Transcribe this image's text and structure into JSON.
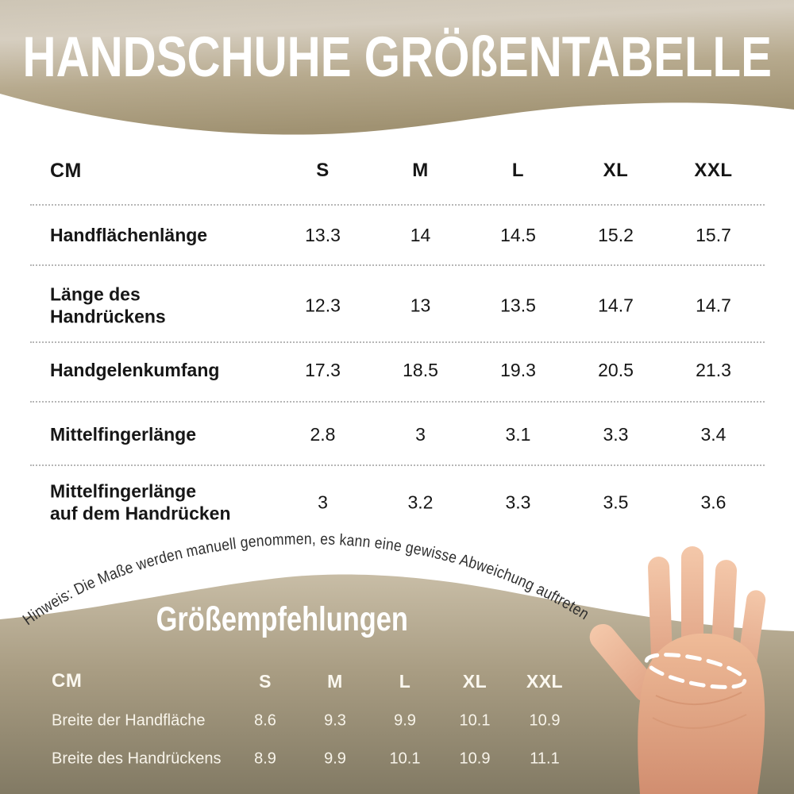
{
  "colors": {
    "banner_light": "#d6cec0",
    "banner_tan": "#a29374",
    "section_tan_light": "#c8bda6",
    "section_tan_dark": "#827a64",
    "table_text": "#161616",
    "separator_gray": "#9f9f9f",
    "white_text": "#ffffff",
    "note_text": "#2e2e2e",
    "skin_light": "#f3c6a8",
    "skin_dark": "#d5947a"
  },
  "header": {
    "title": "HANDSCHUHE GRÖßENTABELLE"
  },
  "size_table": {
    "unit_label": "CM",
    "columns": [
      "S",
      "M",
      "L",
      "XL",
      "XXL"
    ],
    "rows": [
      {
        "label": "Handflächenlänge",
        "values": [
          "13.3",
          "14",
          "14.5",
          "15.2",
          "15.7"
        ]
      },
      {
        "label": "Länge des\nHandrückens",
        "values": [
          "12.3",
          "13",
          "13.5",
          "14.7",
          "14.7"
        ]
      },
      {
        "label": "Handgelenkumfang",
        "values": [
          "17.3",
          "18.5",
          "19.3",
          "20.5",
          "21.3"
        ]
      },
      {
        "label": "Mittelfingerlänge",
        "values": [
          "2.8",
          "3",
          "3.1",
          "3.3",
          "3.4"
        ]
      },
      {
        "label": "Mittelfingerlänge\nauf dem Handrücken",
        "values": [
          "3",
          "3.2",
          "3.3",
          "3.5",
          "3.6"
        ]
      }
    ]
  },
  "note": {
    "text": "Hinweis: Die Maße werden manuell genommen, es kann eine gewisse Abweichung auftreten."
  },
  "recommendations": {
    "title": "Größempfehlungen",
    "unit_label": "CM",
    "columns": [
      "S",
      "M",
      "L",
      "XL",
      "XXL"
    ],
    "rows": [
      {
        "label": "Breite der Handfläche",
        "values": [
          "8.6",
          "9.3",
          "9.9",
          "10.1",
          "10.9"
        ]
      },
      {
        "label": "Breite des Handrückens",
        "values": [
          "8.9",
          "9.9",
          "10.1",
          "10.9",
          "11.1"
        ]
      }
    ]
  },
  "hand": {
    "illustration": "open-palm-hand",
    "marker": "palm-width-dashed-ellipse"
  }
}
